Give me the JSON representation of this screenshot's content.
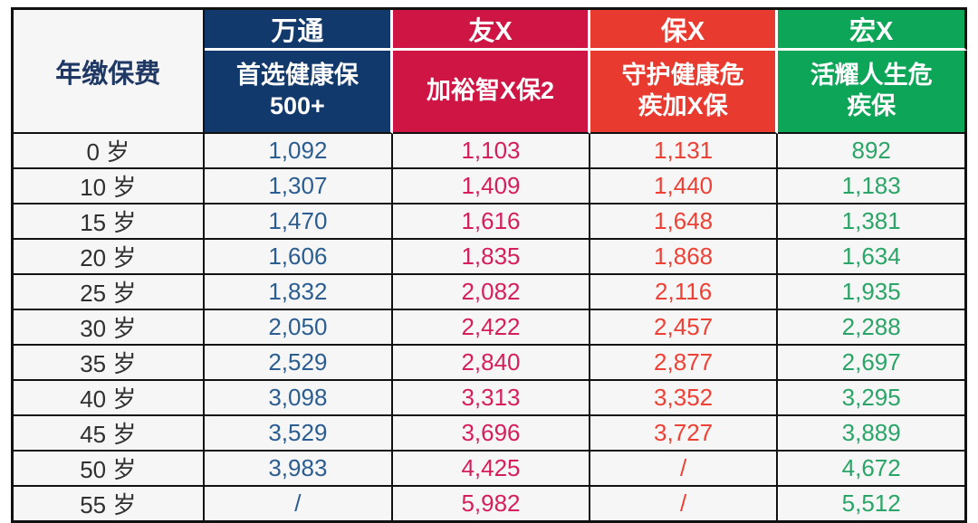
{
  "table": {
    "corner_header": "年缴保费",
    "columns": [
      {
        "company": "万通",
        "product": "首选健康保\n500+",
        "header_bg": "#12396B",
        "value_color": "#2B5D90"
      },
      {
        "company": "友X",
        "product": "加裕智X保2",
        "header_bg": "#CE1543",
        "value_color": "#D51F5A"
      },
      {
        "company": "保X",
        "product": "守护健康危\n疾加X保",
        "header_bg": "#E93A2F",
        "value_color": "#EE4136"
      },
      {
        "company": "宏X",
        "product": "活耀人生危\n疾保",
        "header_bg": "#0DA557",
        "value_color": "#2AA567"
      }
    ],
    "rows": [
      {
        "age": "0 岁",
        "values": [
          "1,092",
          "1,103",
          "1,131",
          "892"
        ]
      },
      {
        "age": "10 岁",
        "values": [
          "1,307",
          "1,409",
          "1,440",
          "1,183"
        ]
      },
      {
        "age": "15 岁",
        "values": [
          "1,470",
          "1,616",
          "1,648",
          "1,381"
        ]
      },
      {
        "age": "20 岁",
        "values": [
          "1,606",
          "1,835",
          "1,868",
          "1,634"
        ]
      },
      {
        "age": "25 岁",
        "values": [
          "1,832",
          "2,082",
          "2,116",
          "1,935"
        ]
      },
      {
        "age": "30 岁",
        "values": [
          "2,050",
          "2,422",
          "2,457",
          "2,288"
        ]
      },
      {
        "age": "35 岁",
        "values": [
          "2,529",
          "2,840",
          "2,877",
          "2,697"
        ]
      },
      {
        "age": "40 岁",
        "values": [
          "3,098",
          "3,313",
          "3,352",
          "3,295"
        ]
      },
      {
        "age": "45 岁",
        "values": [
          "3,529",
          "3,696",
          "3,727",
          "3,889"
        ]
      },
      {
        "age": "50 岁",
        "values": [
          "3,983",
          "4,425",
          "/",
          "4,672"
        ]
      },
      {
        "age": "55 岁",
        "values": [
          "/",
          "5,982",
          "/",
          "5,512"
        ]
      }
    ]
  },
  "colors": {
    "grid_border": "#111111",
    "cell_background": "#f6f6f6",
    "corner_text": "#1F3864",
    "age_text": "#303030",
    "header_text": "#ffffff"
  },
  "chart_data": {
    "type": "table",
    "title": "年缴保费",
    "categories": [
      "0 岁",
      "10 岁",
      "15 岁",
      "20 岁",
      "25 岁",
      "30 岁",
      "35 岁",
      "40 岁",
      "45 岁",
      "50 岁",
      "55 岁"
    ],
    "series": [
      {
        "name": "万通 首选健康保500+",
        "values": [
          1092,
          1307,
          1470,
          1606,
          1832,
          2050,
          2529,
          3098,
          3529,
          3983,
          null
        ]
      },
      {
        "name": "友X 加裕智X保2",
        "values": [
          1103,
          1409,
          1616,
          1835,
          2082,
          2422,
          2840,
          3313,
          3696,
          4425,
          5982
        ]
      },
      {
        "name": "保X 守护健康危疾加X保",
        "values": [
          1131,
          1440,
          1648,
          1868,
          2116,
          2457,
          2877,
          3352,
          3727,
          null,
          null
        ]
      },
      {
        "name": "宏X 活耀人生危疾保",
        "values": [
          892,
          1183,
          1381,
          1634,
          1935,
          2288,
          2697,
          3295,
          3889,
          4672,
          5512
        ]
      }
    ],
    "missing_value_marker": "/"
  }
}
